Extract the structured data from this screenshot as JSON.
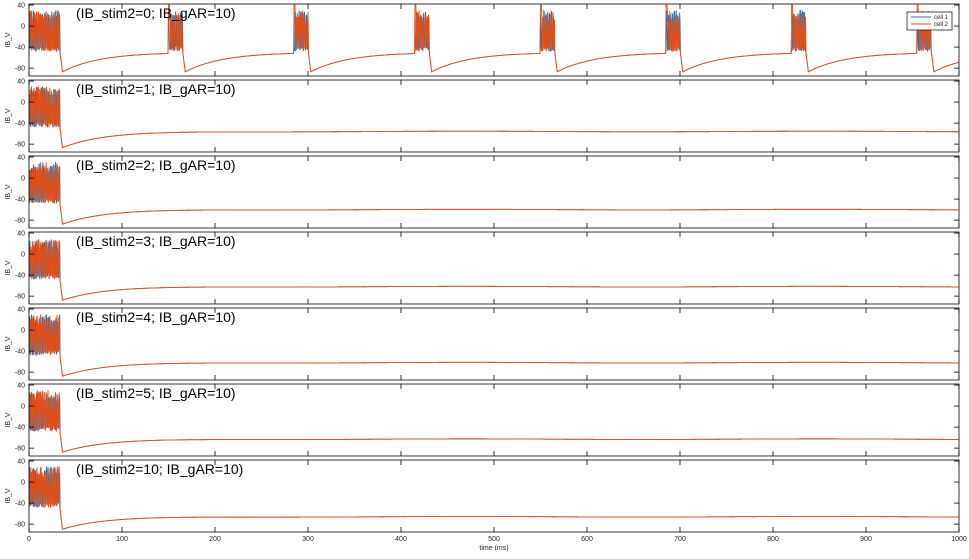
{
  "chart_data": {
    "type": "line",
    "xlabel": "time (ms)",
    "ylabel": "IB_V",
    "xlim": [
      0,
      1000
    ],
    "ylim": [
      -95,
      42
    ],
    "xticks": [
      "0",
      "100",
      "200",
      "300",
      "400",
      "500",
      "600",
      "700",
      "800",
      "900",
      "1000"
    ],
    "yticks": [
      "40",
      "0",
      "-40",
      "-80"
    ],
    "legend": {
      "position": "top-right",
      "entries": [
        {
          "name": "cell 1",
          "color": "#2e6da4"
        },
        {
          "name": "cell 2",
          "color": "#e0501a"
        }
      ]
    },
    "series_colors": {
      "cell_1": "#2e6da4",
      "cell_2": "#e0501a"
    },
    "panels": [
      {
        "title": "(IB_stim2=0; IB_gAR=10)",
        "rhythmic": true,
        "burst_starts_ms": [
          0,
          150,
          285,
          415,
          550,
          685,
          820,
          955
        ],
        "burst_ends_ms": [
          33,
          165,
          300,
          430,
          565,
          700,
          835,
          970
        ],
        "post_burst_min_mv": -87,
        "recovery_mv": -50,
        "rest_mv": -64
      },
      {
        "title": "(IB_stim2=1; IB_gAR=10)",
        "rhythmic": false,
        "burst_starts_ms": [
          0
        ],
        "burst_ends_ms": [
          33
        ],
        "post_burst_min_mv": -87,
        "rest_mv": -56
      },
      {
        "title": "(IB_stim2=2; IB_gAR=10)",
        "rhythmic": false,
        "burst_starts_ms": [
          0
        ],
        "burst_ends_ms": [
          33
        ],
        "post_burst_min_mv": -88,
        "rest_mv": -60
      },
      {
        "title": "(IB_stim2=3; IB_gAR=10)",
        "rhythmic": false,
        "burst_starts_ms": [
          0
        ],
        "burst_ends_ms": [
          33
        ],
        "post_burst_min_mv": -88,
        "rest_mv": -62
      },
      {
        "title": "(IB_stim2=4; IB_gAR=10)",
        "rhythmic": false,
        "burst_starts_ms": [
          0
        ],
        "burst_ends_ms": [
          33
        ],
        "post_burst_min_mv": -88,
        "rest_mv": -62
      },
      {
        "title": "(IB_stim2=5; IB_gAR=10)",
        "rhythmic": false,
        "burst_starts_ms": [
          0
        ],
        "burst_ends_ms": [
          33
        ],
        "post_burst_min_mv": -88,
        "rest_mv": -63
      },
      {
        "title": "(IB_stim2=10; IB_gAR=10)",
        "rhythmic": false,
        "burst_starts_ms": [
          0
        ],
        "burst_ends_ms": [
          33
        ],
        "post_burst_min_mv": -90,
        "rest_mv": -66
      }
    ]
  }
}
